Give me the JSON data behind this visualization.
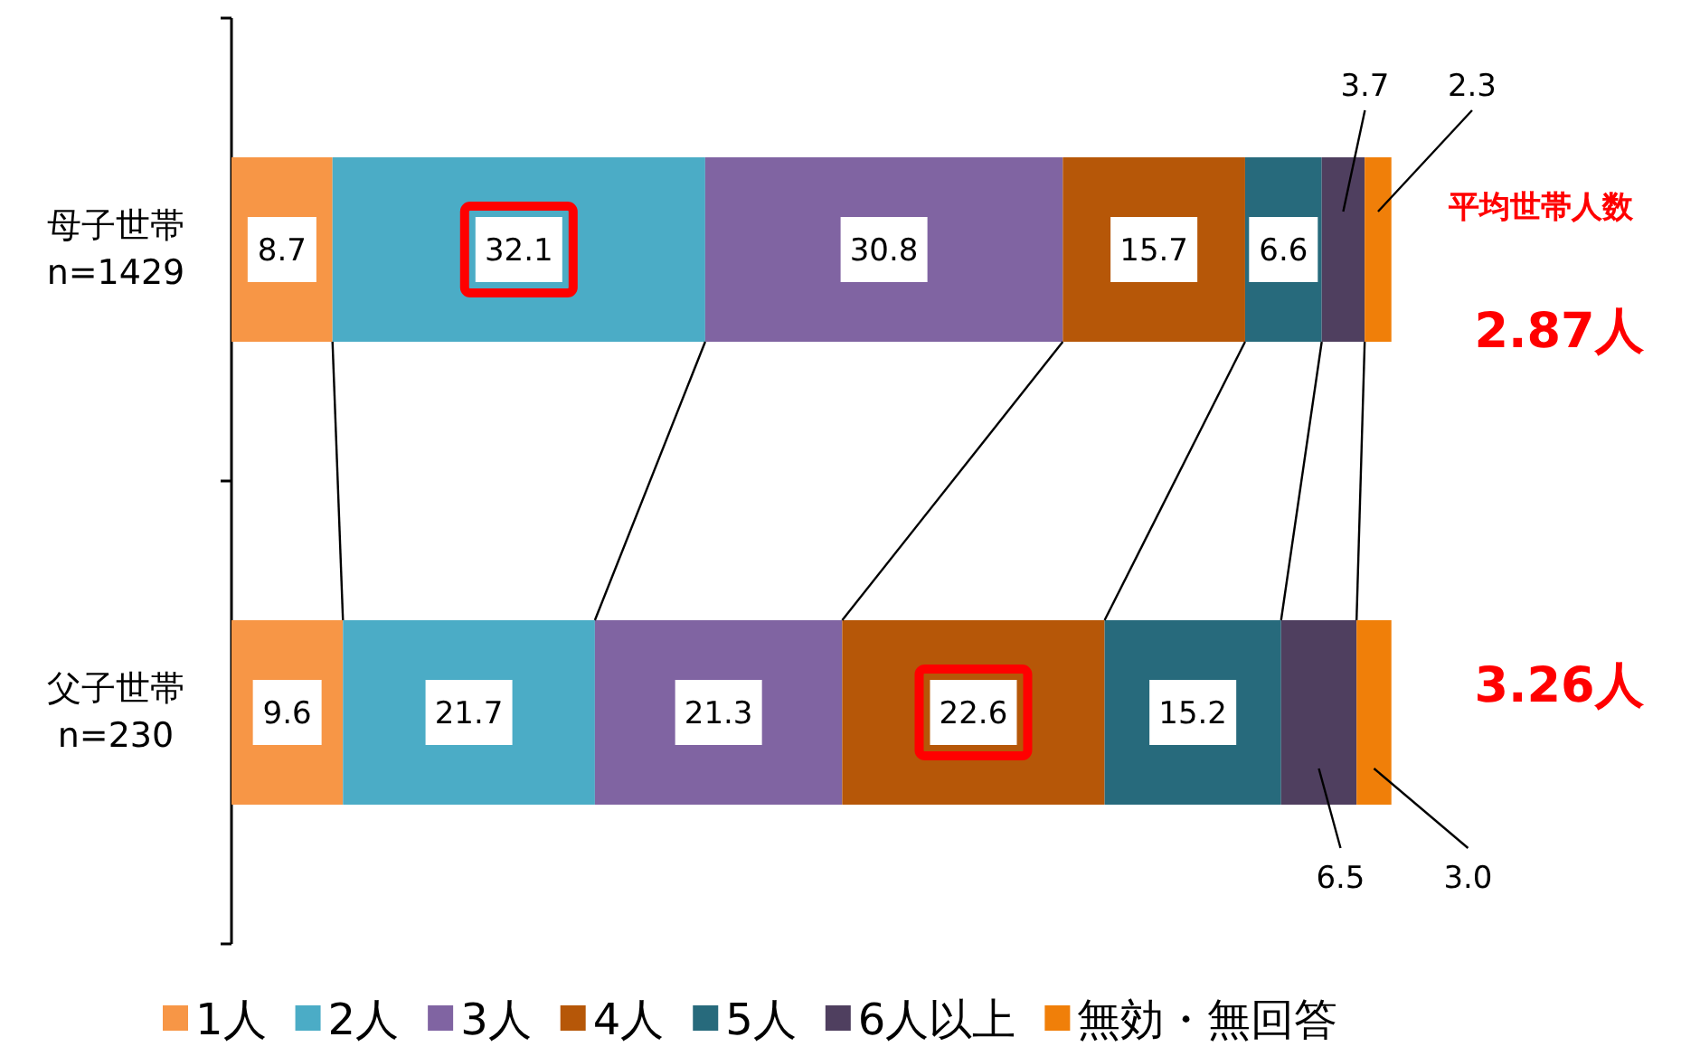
{
  "chart_data": {
    "type": "bar",
    "orientation": "horizontal",
    "stacked": true,
    "categories": [
      "母子世帯 n=1429",
      "父子世帯 n=230"
    ],
    "series": [
      {
        "name": "1人",
        "color": "#f79646",
        "values": [
          8.7,
          9.6
        ],
        "value_labels": [
          "8.7",
          "9.6"
        ]
      },
      {
        "name": "2人",
        "color": "#4bacc6",
        "values": [
          32.1,
          21.7
        ],
        "value_labels": [
          "32.1",
          "21.7"
        ]
      },
      {
        "name": "3人",
        "color": "#8064a2",
        "values": [
          30.8,
          21.3
        ],
        "value_labels": [
          "30.8",
          "21.3"
        ]
      },
      {
        "name": "4人",
        "color": "#b65708",
        "values": [
          15.7,
          22.6
        ],
        "value_labels": [
          "15.7",
          "22.6"
        ]
      },
      {
        "name": "5人",
        "color": "#276a7c",
        "values": [
          6.6,
          15.2
        ],
        "value_labels": [
          "6.6",
          "15.2"
        ]
      },
      {
        "name": "6人以上",
        "color": "#4f3f5f",
        "values": [
          3.7,
          6.5
        ],
        "value_labels": [
          "3.7",
          "6.5"
        ]
      },
      {
        "name": "無効・無回答",
        "color": "#f07f09",
        "values": [
          2.3,
          3.0
        ],
        "value_labels": [
          "2.3",
          "3.0"
        ]
      }
    ],
    "xlim": [
      0,
      100
    ],
    "tick_labels": "y",
    "legend": "bottom",
    "annotations": [
      "平均世帯人数",
      "2.87人",
      "3.26人"
    ]
  }
}
